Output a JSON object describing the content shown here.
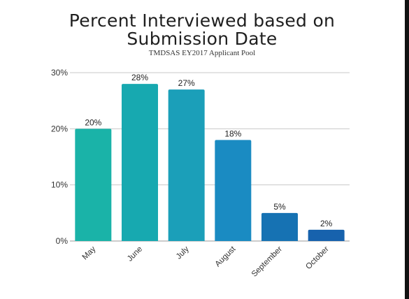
{
  "chart_data": {
    "type": "bar",
    "title_lines": [
      "Percent Interviewed based on",
      "Submission Date"
    ],
    "subtitle": "TMDSAS EY2017 Applicant Pool",
    "categories": [
      "May",
      "June",
      "July",
      "August",
      "September",
      "October"
    ],
    "values": [
      20,
      28,
      27,
      18,
      5,
      2
    ],
    "data_labels": [
      "20%",
      "28%",
      "27%",
      "18%",
      "5%",
      "2%"
    ],
    "yticks": [
      {
        "value": 0,
        "label": "0%"
      },
      {
        "value": 10,
        "label": "10%"
      },
      {
        "value": 20,
        "label": "20%"
      },
      {
        "value": 30,
        "label": "30%"
      }
    ],
    "ylim": [
      0,
      30
    ],
    "grid": true,
    "legend": "none",
    "colors": [
      "#1ab3a8",
      "#17a9b0",
      "#1b9fb9",
      "#1a8bc2",
      "#1672b3",
      "#1762ad"
    ]
  }
}
